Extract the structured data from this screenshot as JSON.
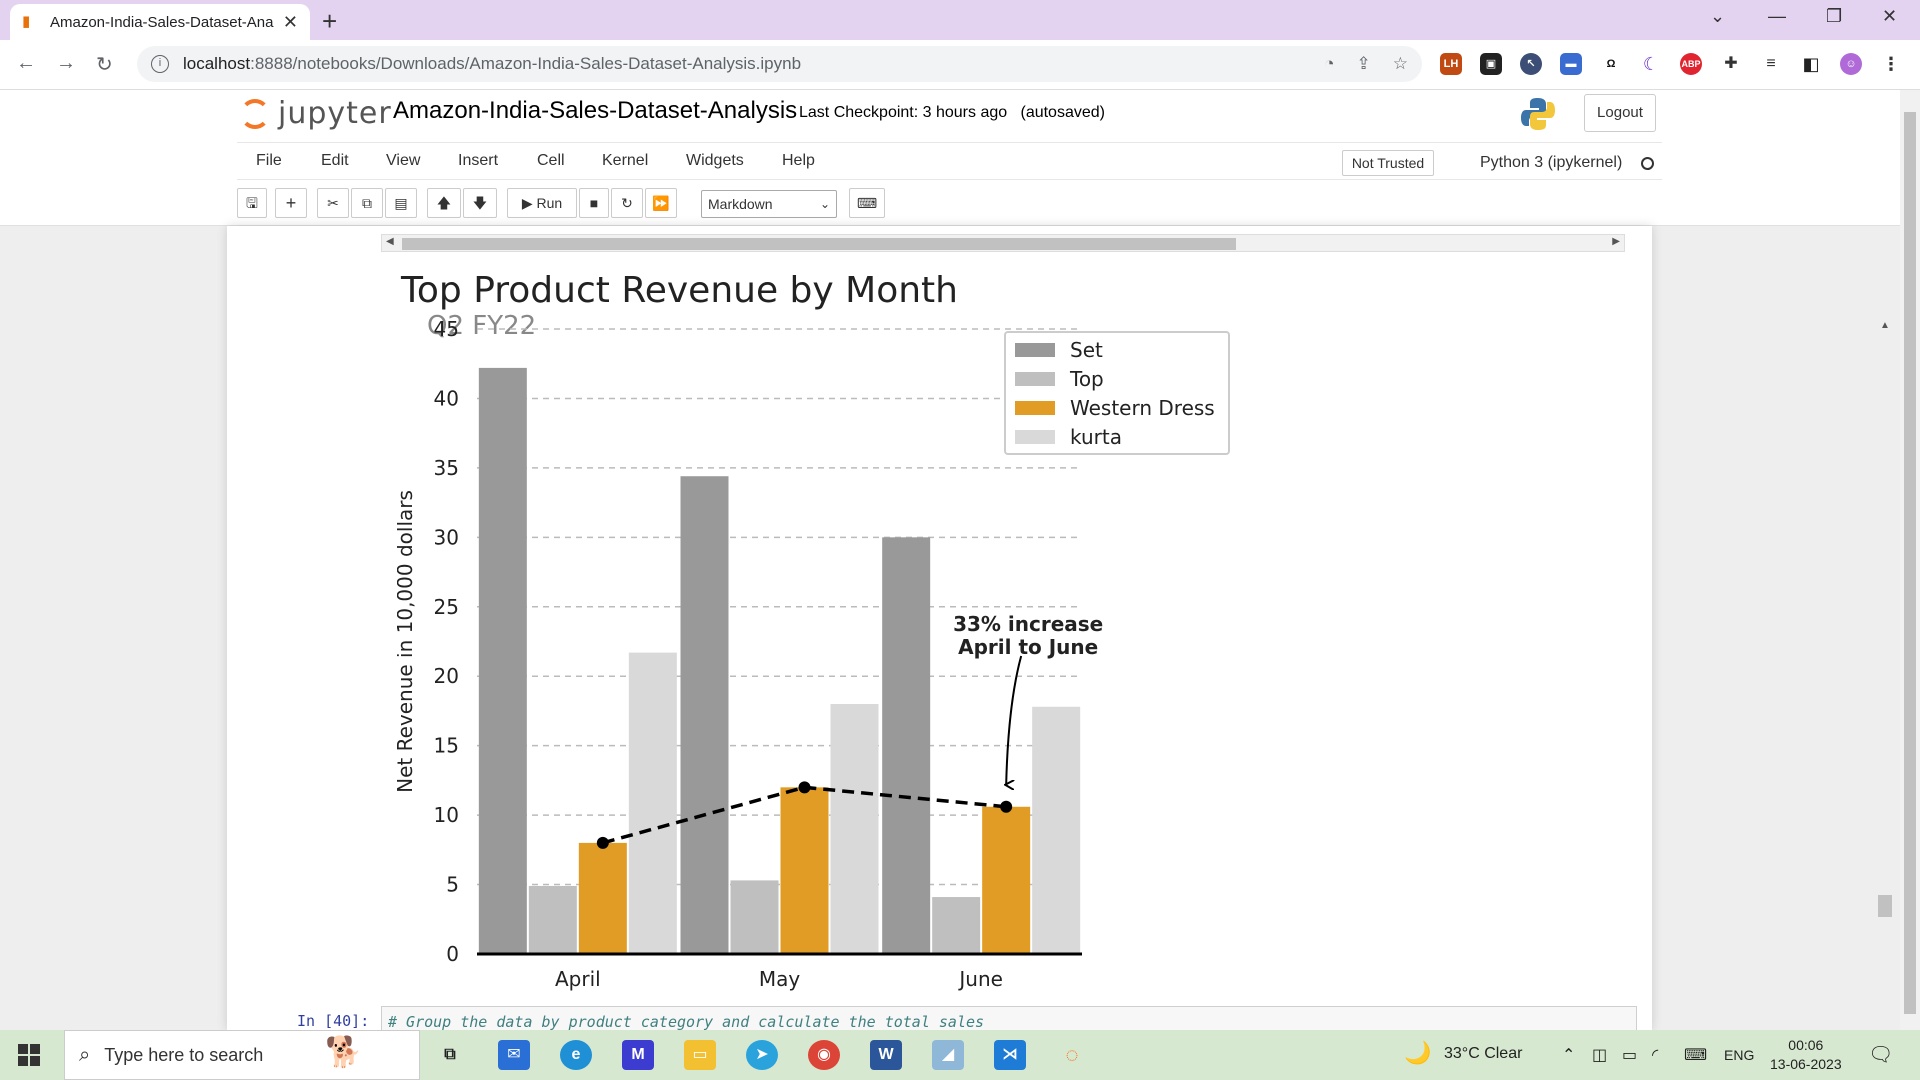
{
  "browser": {
    "tab_title": "Amazon-India-Sales-Dataset-Ana",
    "url_host": "localhost",
    "url_rest": ":8888/notebooks/Downloads/Amazon-India-Sales-Dataset-Analysis.ipynb"
  },
  "jupyter": {
    "logo_text": "jupyter",
    "notebook_name": "Amazon-India-Sales-Dataset-Analysis",
    "checkpoint": "Last Checkpoint: 3 hours ago",
    "autosave": "(autosaved)",
    "logout_label": "Logout",
    "menu": [
      "File",
      "Edit",
      "View",
      "Insert",
      "Cell",
      "Kernel",
      "Widgets",
      "Help"
    ],
    "trust_label": "Not Trusted",
    "kernel_name": "Python 3 (ipykernel)",
    "run_label": "Run",
    "cell_type": "Markdown",
    "next_prompt": "In [40]:",
    "next_code": "# Group the data by product category and calculate the total sales"
  },
  "chart_data": {
    "type": "bar",
    "title": "Top Product Revenue by Month",
    "subtitle": "Q2 FY22",
    "xlabel": "",
    "ylabel": "Net Revenue in 10,000 dollars",
    "categories": [
      "April",
      "May",
      "June"
    ],
    "series": [
      {
        "name": "Set",
        "values": [
          42.2,
          34.4,
          30.0
        ],
        "color": "#999999"
      },
      {
        "name": "Top",
        "values": [
          4.9,
          5.3,
          4.1
        ],
        "color": "#bfbfbf"
      },
      {
        "name": "Western Dress",
        "values": [
          8.0,
          12.0,
          10.6
        ],
        "color": "#e09c24"
      },
      {
        "name": "kurta",
        "values": [
          21.7,
          18.0,
          17.8
        ],
        "color": "#d9d9d9"
      }
    ],
    "trend_line_series": "Western Dress",
    "annotation": [
      "33% increase",
      "April to June"
    ],
    "yticks": [
      0,
      5,
      10,
      15,
      20,
      25,
      30,
      35,
      40,
      45
    ],
    "ylim": [
      0,
      45
    ],
    "grid": "horizontal dashed",
    "legend_position": "top-right"
  },
  "taskbar": {
    "search_placeholder": "Type here to search",
    "weather": "33°C  Clear",
    "language": "ENG",
    "time": "00:06",
    "date": "13-06-2023"
  }
}
